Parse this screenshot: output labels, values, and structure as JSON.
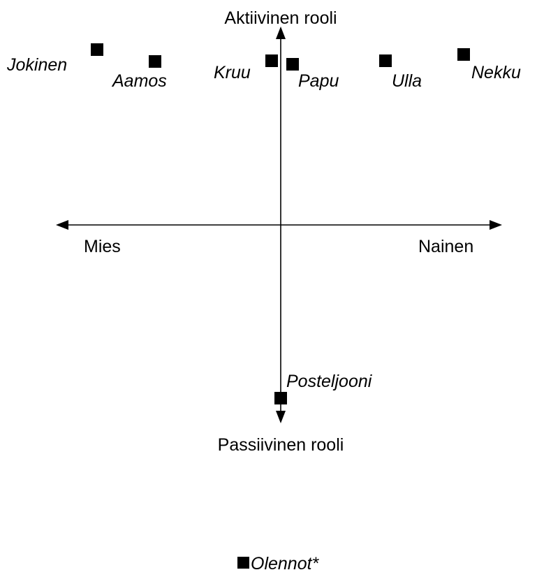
{
  "axes": {
    "top_label": "Aktiivinen rooli",
    "bottom_label": "Passiivinen rooli",
    "left_label": "Mies",
    "right_label": "Nainen"
  },
  "characters": [
    {
      "id": "jokinen",
      "label": "Jokinen"
    },
    {
      "id": "aamos",
      "label": "Aamos"
    },
    {
      "id": "kruu",
      "label": "Kruu"
    },
    {
      "id": "papu",
      "label": "Papu"
    },
    {
      "id": "ulla",
      "label": "Ulla"
    },
    {
      "id": "nekku",
      "label": "Nekku"
    },
    {
      "id": "posteljooni",
      "label": "Posteljooni"
    }
  ],
  "outside": {
    "label": "Olennot*"
  }
}
